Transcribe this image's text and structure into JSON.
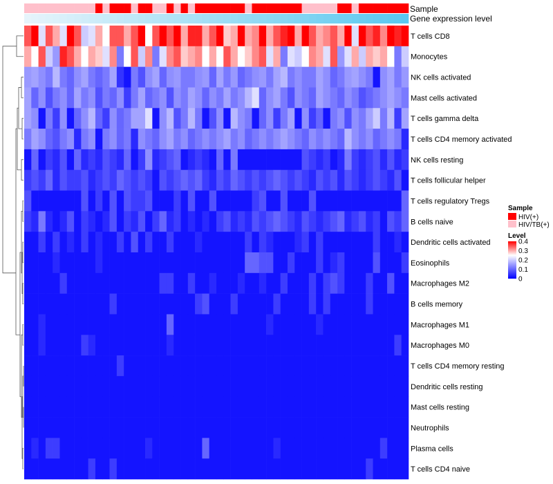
{
  "chart_data": {
    "type": "heatmap",
    "annotation_labels": [
      "Sample",
      "Gene expression level"
    ],
    "rows": [
      "T cells CD8",
      "Monocytes",
      "NK cells activated",
      "Mast cells activated",
      "T cells gamma delta",
      "T cells CD4 memory activated",
      "NK cells resting",
      "T cells follicular helper",
      "T cells regulatory  Tregs",
      "B cells naive",
      "Dendritic cells activated",
      "Eosinophils",
      "Macrophages M2",
      "B cells memory",
      "Macrophages M1",
      "Macrophages M0",
      "T cells CD4 memory resting",
      "Dendritic cells resting",
      "Mast cells resting",
      "Neutrophils",
      "Plasma cells",
      "T cells CD4 naive"
    ],
    "sample_groups": [
      "HIV/TB(+)",
      "HIV/TB(+)",
      "HIV/TB(+)",
      "HIV/TB(+)",
      "HIV/TB(+)",
      "HIV/TB(+)",
      "HIV/TB(+)",
      "HIV/TB(+)",
      "HIV/TB(+)",
      "HIV/TB(+)",
      "HIV(+)",
      "HIV/TB(+)",
      "HIV(+)",
      "HIV(+)",
      "HIV(+)",
      "HIV/TB(+)",
      "HIV(+)",
      "HIV(+)",
      "HIV/TB(+)",
      "HIV/TB(+)",
      "HIV(+)",
      "HIV/TB(+)",
      "HIV(+)",
      "HIV/TB(+)",
      "HIV(+)",
      "HIV(+)",
      "HIV(+)",
      "HIV(+)",
      "HIV(+)",
      "HIV(+)",
      "HIV(+)",
      "HIV/TB(+)",
      "HIV(+)",
      "HIV(+)",
      "HIV(+)",
      "HIV(+)",
      "HIV(+)",
      "HIV(+)",
      "HIV(+)",
      "HIV/TB(+)",
      "HIV/TB(+)",
      "HIV/TB(+)",
      "HIV/TB(+)",
      "HIV/TB(+)",
      "HIV(+)",
      "HIV(+)",
      "HIV/TB(+)",
      "HIV(+)",
      "HIV(+)",
      "HIV(+)",
      "HIV(+)",
      "HIV(+)",
      "HIV(+)",
      "HIV(+)"
    ],
    "expression_gradient": [
      "#e6f4fb",
      "#5bc8ef"
    ],
    "values": [
      [
        0.35,
        0.4,
        0.22,
        0.35,
        0.3,
        0.22,
        0.4,
        0.35,
        0.2,
        0.22,
        0.3,
        0.25,
        0.35,
        0.35,
        0.3,
        0.35,
        0.4,
        0.25,
        0.35,
        0.4,
        0.35,
        0.42,
        0.3,
        0.38,
        0.38,
        0.3,
        0.35,
        0.42,
        0.28,
        0.3,
        0.4,
        0.3,
        0.32,
        0.4,
        0.3,
        0.35,
        0.38,
        0.4,
        0.3,
        0.45,
        0.35,
        0.3,
        0.32,
        0.35,
        0.3,
        0.4,
        0.22,
        0.4,
        0.35,
        0.38,
        0.32,
        0.4,
        0.38,
        0.42
      ],
      [
        0.3,
        0.25,
        0.35,
        0.2,
        0.15,
        0.38,
        0.35,
        0.3,
        0.25,
        0.3,
        0.28,
        0.22,
        0.32,
        0.12,
        0.25,
        0.35,
        0.2,
        0.32,
        0.12,
        0.22,
        0.32,
        0.35,
        0.28,
        0.3,
        0.32,
        0.25,
        0.3,
        0.25,
        0.35,
        0.3,
        0.25,
        0.28,
        0.32,
        0.35,
        0.22,
        0.3,
        0.12,
        0.22,
        0.2,
        0.25,
        0.32,
        0.3,
        0.22,
        0.35,
        0.15,
        0.22,
        0.3,
        0.2,
        0.3,
        0.28,
        0.3,
        0.25,
        0.12,
        0.2
      ],
      [
        0.15,
        0.16,
        0.14,
        0.12,
        0.18,
        0.12,
        0.1,
        0.14,
        0.16,
        0.12,
        0.1,
        0.12,
        0.16,
        0.05,
        0.02,
        0.12,
        0.08,
        0.14,
        0.16,
        0.1,
        0.14,
        0.15,
        0.12,
        0.12,
        0.14,
        0.15,
        0.1,
        0.16,
        0.12,
        0.15,
        0.1,
        0.12,
        0.14,
        0.15,
        0.12,
        0.16,
        0.18,
        0.12,
        0.14,
        0.12,
        0.12,
        0.16,
        0.14,
        0.1,
        0.12,
        0.15,
        0.16,
        0.14,
        0.12,
        0.02,
        0.14,
        0.16,
        0.12,
        0.15
      ],
      [
        0.16,
        0.1,
        0.14,
        0.08,
        0.12,
        0.14,
        0.1,
        0.16,
        0.12,
        0.14,
        0.08,
        0.12,
        0.1,
        0.14,
        0.06,
        0.12,
        0.16,
        0.1,
        0.12,
        0.14,
        0.08,
        0.14,
        0.12,
        0.16,
        0.14,
        0.1,
        0.14,
        0.12,
        0.16,
        0.12,
        0.14,
        0.18,
        0.22,
        0.1,
        0.14,
        0.16,
        0.12,
        0.08,
        0.14,
        0.12,
        0.1,
        0.16,
        0.14,
        0.12,
        0.1,
        0.14,
        0.12,
        0.08,
        0.1,
        0.12,
        0.14,
        0.16,
        0.14,
        0.12
      ],
      [
        0.16,
        0.14,
        0.02,
        0.12,
        0.06,
        0.14,
        0.02,
        0.1,
        0.14,
        0.18,
        0.1,
        0.06,
        0.14,
        0.1,
        0.12,
        0.16,
        0.16,
        0.22,
        0.02,
        0.14,
        0.18,
        0.08,
        0.12,
        0.18,
        0.12,
        0.02,
        0.08,
        0.14,
        0.02,
        0.18,
        0.14,
        0.12,
        0.02,
        0.1,
        0.14,
        0.06,
        0.12,
        0.16,
        0.02,
        0.14,
        0.06,
        0.1,
        0.02,
        0.12,
        0.14,
        0.08,
        0.14,
        0.12,
        0.16,
        0.2,
        0.12,
        0.18,
        0.06,
        0.16
      ],
      [
        0.12,
        0.16,
        0.14,
        0.1,
        0.08,
        0.12,
        0.14,
        0.04,
        0.12,
        0.14,
        0.02,
        0.12,
        0.14,
        0.1,
        0.12,
        0.04,
        0.14,
        0.12,
        0.1,
        0.14,
        0.16,
        0.12,
        0.14,
        0.1,
        0.12,
        0.14,
        0.12,
        0.14,
        0.16,
        0.12,
        0.14,
        0.1,
        0.12,
        0.14,
        0.12,
        0.14,
        0.16,
        0.14,
        0.12,
        0.1,
        0.14,
        0.12,
        0.14,
        0.12,
        0.1,
        0.18,
        0.14,
        0.12,
        0.14,
        0.1,
        0.12,
        0.14,
        0.12,
        0.04
      ],
      [
        0.02,
        0.1,
        0.02,
        0.06,
        0.04,
        0.08,
        0.02,
        0.1,
        0.04,
        0.06,
        0.04,
        0.08,
        0.06,
        0.04,
        0.1,
        0.02,
        0.06,
        0.14,
        0.04,
        0.06,
        0.08,
        0.1,
        0.02,
        0.04,
        0.06,
        0.04,
        0.02,
        0.1,
        0.02,
        0.12,
        0.02,
        0.02,
        0.02,
        0.02,
        0.02,
        0.02,
        0.02,
        0.02,
        0.02,
        0.08,
        0.06,
        0.04,
        0.06,
        0.02,
        0.04,
        0.12,
        0.06,
        0.04,
        0.06,
        0.08,
        0.04,
        0.08,
        0.04,
        0.06
      ],
      [
        0.06,
        0.08,
        0.06,
        0.1,
        0.04,
        0.08,
        0.06,
        0.06,
        0.08,
        0.04,
        0.06,
        0.08,
        0.06,
        0.1,
        0.08,
        0.06,
        0.08,
        0.06,
        0.02,
        0.08,
        0.06,
        0.08,
        0.1,
        0.08,
        0.1,
        0.06,
        0.04,
        0.08,
        0.06,
        0.1,
        0.08,
        0.06,
        0.08,
        0.06,
        0.08,
        0.1,
        0.08,
        0.06,
        0.08,
        0.06,
        0.04,
        0.08,
        0.06,
        0.08,
        0.04,
        0.08,
        0.06,
        0.04,
        0.06,
        0.08,
        0.06,
        0.04,
        0.08,
        0.02
      ],
      [
        0.08,
        0.02,
        0.02,
        0.02,
        0.02,
        0.02,
        0.02,
        0.02,
        0.08,
        0.02,
        0.06,
        0.02,
        0.08,
        0.02,
        0.08,
        0.06,
        0.06,
        0.08,
        0.02,
        0.02,
        0.02,
        0.06,
        0.02,
        0.08,
        0.02,
        0.02,
        0.08,
        0.02,
        0.02,
        0.02,
        0.02,
        0.02,
        0.06,
        0.08,
        0.02,
        0.02,
        0.08,
        0.02,
        0.02,
        0.02,
        0.08,
        0.02,
        0.02,
        0.02,
        0.02,
        0.02,
        0.02,
        0.02,
        0.02,
        0.02,
        0.02,
        0.02,
        0.02,
        0.1
      ],
      [
        0.06,
        0.04,
        0.12,
        0.04,
        0.02,
        0.04,
        0.08,
        0.02,
        0.06,
        0.04,
        0.02,
        0.04,
        0.08,
        0.02,
        0.06,
        0.04,
        0.08,
        0.02,
        0.06,
        0.1,
        0.04,
        0.06,
        0.02,
        0.04,
        0.02,
        0.04,
        0.02,
        0.06,
        0.08,
        0.04,
        0.06,
        0.04,
        0.08,
        0.06,
        0.08,
        0.1,
        0.08,
        0.06,
        0.04,
        0.08,
        0.06,
        0.04,
        0.06,
        0.08,
        0.1,
        0.04,
        0.06,
        0.08,
        0.04,
        0.06,
        0.02,
        0.08,
        0.06,
        0.1
      ],
      [
        0.02,
        0.02,
        0.06,
        0.02,
        0.06,
        0.02,
        0.04,
        0.02,
        0.06,
        0.02,
        0.04,
        0.02,
        0.02,
        0.06,
        0.02,
        0.08,
        0.02,
        0.06,
        0.02,
        0.02,
        0.06,
        0.02,
        0.02,
        0.02,
        0.04,
        0.02,
        0.02,
        0.02,
        0.02,
        0.02,
        0.02,
        0.06,
        0.02,
        0.06,
        0.04,
        0.02,
        0.02,
        0.02,
        0.04,
        0.06,
        0.02,
        0.06,
        0.02,
        0.02,
        0.02,
        0.02,
        0.02,
        0.02,
        0.02,
        0.06,
        0.02,
        0.02,
        0.04,
        0.02
      ],
      [
        0.02,
        0.02,
        0.02,
        0.02,
        0.04,
        0.02,
        0.02,
        0.02,
        0.02,
        0.02,
        0.04,
        0.02,
        0.02,
        0.02,
        0.02,
        0.02,
        0.02,
        0.02,
        0.02,
        0.02,
        0.02,
        0.02,
        0.02,
        0.02,
        0.02,
        0.02,
        0.02,
        0.02,
        0.02,
        0.02,
        0.02,
        0.1,
        0.1,
        0.08,
        0.08,
        0.02,
        0.02,
        0.06,
        0.02,
        0.02,
        0.02,
        0.06,
        0.02,
        0.04,
        0.06,
        0.02,
        0.02,
        0.02,
        0.02,
        0.08,
        0.02,
        0.02,
        0.02,
        0.06
      ],
      [
        0.02,
        0.02,
        0.02,
        0.02,
        0.02,
        0.06,
        0.02,
        0.02,
        0.02,
        0.02,
        0.02,
        0.02,
        0.02,
        0.02,
        0.02,
        0.02,
        0.02,
        0.02,
        0.02,
        0.06,
        0.06,
        0.02,
        0.02,
        0.06,
        0.02,
        0.02,
        0.04,
        0.02,
        0.02,
        0.02,
        0.04,
        0.02,
        0.02,
        0.04,
        0.02,
        0.02,
        0.06,
        0.02,
        0.02,
        0.02,
        0.06,
        0.02,
        0.06,
        0.08,
        0.06,
        0.02,
        0.02,
        0.02,
        0.06,
        0.02,
        0.02,
        0.08,
        0.02,
        0.02
      ],
      [
        0.02,
        0.02,
        0.02,
        0.02,
        0.02,
        0.02,
        0.02,
        0.02,
        0.02,
        0.02,
        0.02,
        0.02,
        0.06,
        0.02,
        0.02,
        0.02,
        0.02,
        0.02,
        0.02,
        0.02,
        0.02,
        0.02,
        0.02,
        0.02,
        0.06,
        0.08,
        0.02,
        0.02,
        0.02,
        0.06,
        0.02,
        0.02,
        0.02,
        0.02,
        0.02,
        0.06,
        0.02,
        0.02,
        0.02,
        0.02,
        0.06,
        0.02,
        0.06,
        0.02,
        0.02,
        0.02,
        0.02,
        0.02,
        0.06,
        0.02,
        0.02,
        0.02,
        0.02,
        0.02
      ],
      [
        0.02,
        0.02,
        0.04,
        0.02,
        0.02,
        0.02,
        0.02,
        0.02,
        0.02,
        0.02,
        0.02,
        0.02,
        0.02,
        0.02,
        0.02,
        0.02,
        0.02,
        0.02,
        0.02,
        0.02,
        0.1,
        0.02,
        0.02,
        0.02,
        0.02,
        0.02,
        0.02,
        0.02,
        0.02,
        0.02,
        0.02,
        0.02,
        0.02,
        0.02,
        0.04,
        0.02,
        0.02,
        0.02,
        0.02,
        0.02,
        0.02,
        0.04,
        0.02,
        0.02,
        0.02,
        0.02,
        0.02,
        0.02,
        0.02,
        0.02,
        0.02,
        0.02,
        0.02,
        0.02
      ],
      [
        0.02,
        0.02,
        0.04,
        0.02,
        0.02,
        0.02,
        0.02,
        0.02,
        0.06,
        0.04,
        0.02,
        0.02,
        0.02,
        0.02,
        0.02,
        0.02,
        0.02,
        0.02,
        0.02,
        0.02,
        0.04,
        0.02,
        0.02,
        0.02,
        0.02,
        0.02,
        0.02,
        0.02,
        0.02,
        0.02,
        0.02,
        0.02,
        0.02,
        0.02,
        0.02,
        0.02,
        0.02,
        0.02,
        0.02,
        0.02,
        0.02,
        0.02,
        0.02,
        0.02,
        0.02,
        0.02,
        0.02,
        0.02,
        0.02,
        0.02,
        0.02,
        0.02,
        0.06,
        0.02
      ],
      [
        0.02,
        0.02,
        0.02,
        0.02,
        0.02,
        0.02,
        0.02,
        0.02,
        0.02,
        0.02,
        0.02,
        0.02,
        0.02,
        0.06,
        0.02,
        0.02,
        0.02,
        0.02,
        0.02,
        0.02,
        0.02,
        0.02,
        0.02,
        0.02,
        0.02,
        0.02,
        0.02,
        0.02,
        0.02,
        0.02,
        0.02,
        0.02,
        0.02,
        0.02,
        0.02,
        0.02,
        0.02,
        0.02,
        0.02,
        0.02,
        0.02,
        0.02,
        0.02,
        0.02,
        0.02,
        0.02,
        0.02,
        0.02,
        0.02,
        0.02,
        0.02,
        0.02,
        0.02,
        0.02
      ],
      [
        0.02,
        0.02,
        0.02,
        0.02,
        0.02,
        0.02,
        0.02,
        0.02,
        0.02,
        0.02,
        0.02,
        0.02,
        0.02,
        0.02,
        0.02,
        0.02,
        0.02,
        0.02,
        0.02,
        0.02,
        0.02,
        0.02,
        0.02,
        0.02,
        0.02,
        0.02,
        0.02,
        0.02,
        0.02,
        0.02,
        0.02,
        0.02,
        0.02,
        0.02,
        0.02,
        0.02,
        0.02,
        0.02,
        0.02,
        0.02,
        0.02,
        0.02,
        0.02,
        0.02,
        0.02,
        0.02,
        0.02,
        0.02,
        0.02,
        0.02,
        0.02,
        0.02,
        0.02,
        0.02
      ],
      [
        0.02,
        0.02,
        0.02,
        0.02,
        0.02,
        0.02,
        0.02,
        0.02,
        0.02,
        0.02,
        0.02,
        0.02,
        0.02,
        0.02,
        0.02,
        0.02,
        0.02,
        0.02,
        0.02,
        0.02,
        0.02,
        0.02,
        0.02,
        0.02,
        0.02,
        0.02,
        0.02,
        0.02,
        0.02,
        0.02,
        0.02,
        0.02,
        0.02,
        0.02,
        0.02,
        0.02,
        0.02,
        0.02,
        0.02,
        0.02,
        0.02,
        0.02,
        0.02,
        0.02,
        0.02,
        0.02,
        0.02,
        0.02,
        0.02,
        0.02,
        0.02,
        0.02,
        0.02,
        0.02
      ],
      [
        0.02,
        0.02,
        0.02,
        0.02,
        0.02,
        0.02,
        0.02,
        0.02,
        0.02,
        0.02,
        0.02,
        0.02,
        0.02,
        0.02,
        0.02,
        0.02,
        0.02,
        0.02,
        0.02,
        0.02,
        0.02,
        0.02,
        0.02,
        0.02,
        0.02,
        0.02,
        0.02,
        0.02,
        0.02,
        0.02,
        0.02,
        0.02,
        0.02,
        0.02,
        0.02,
        0.02,
        0.02,
        0.02,
        0.02,
        0.02,
        0.02,
        0.02,
        0.02,
        0.02,
        0.02,
        0.02,
        0.02,
        0.02,
        0.02,
        0.02,
        0.02,
        0.02,
        0.02,
        0.02
      ],
      [
        0.02,
        0.04,
        0.02,
        0.06,
        0.06,
        0.02,
        0.02,
        0.02,
        0.02,
        0.02,
        0.02,
        0.02,
        0.02,
        0.02,
        0.02,
        0.02,
        0.02,
        0.04,
        0.02,
        0.02,
        0.02,
        0.02,
        0.02,
        0.02,
        0.02,
        0.1,
        0.02,
        0.02,
        0.02,
        0.02,
        0.02,
        0.02,
        0.02,
        0.02,
        0.02,
        0.04,
        0.02,
        0.02,
        0.02,
        0.02,
        0.02,
        0.02,
        0.02,
        0.02,
        0.02,
        0.02,
        0.02,
        0.02,
        0.02,
        0.02,
        0.06,
        0.02,
        0.02,
        0.02
      ],
      [
        0.02,
        0.02,
        0.02,
        0.02,
        0.02,
        0.02,
        0.02,
        0.02,
        0.02,
        0.06,
        0.02,
        0.02,
        0.06,
        0.02,
        0.02,
        0.02,
        0.02,
        0.02,
        0.02,
        0.02,
        0.02,
        0.02,
        0.02,
        0.02,
        0.02,
        0.02,
        0.02,
        0.02,
        0.02,
        0.02,
        0.02,
        0.02,
        0.02,
        0.02,
        0.02,
        0.02,
        0.02,
        0.02,
        0.02,
        0.02,
        0.02,
        0.02,
        0.02,
        0.02,
        0.02,
        0.02,
        0.02,
        0.02,
        0.06,
        0.02,
        0.02,
        0.02,
        0.02,
        0.02
      ]
    ],
    "color_scale": {
      "min": 0,
      "max": 0.4,
      "low": "#0000ff",
      "mid": "#ffffff",
      "high": "#ff0000",
      "mid_value": 0.25
    },
    "legend_sample": {
      "title": "Sample",
      "items": [
        {
          "label": "HIV(+)",
          "color": "#ff0000"
        },
        {
          "label": "HIV/TB(+)",
          "color": "#ffc0cb"
        }
      ]
    },
    "legend_level": {
      "title": "Level",
      "ticks": [
        "0.4",
        "0.3",
        "0.2",
        "0.1",
        "0"
      ],
      "tick_values": [
        0.4,
        0.3,
        0.2,
        0.1,
        0
      ]
    }
  }
}
